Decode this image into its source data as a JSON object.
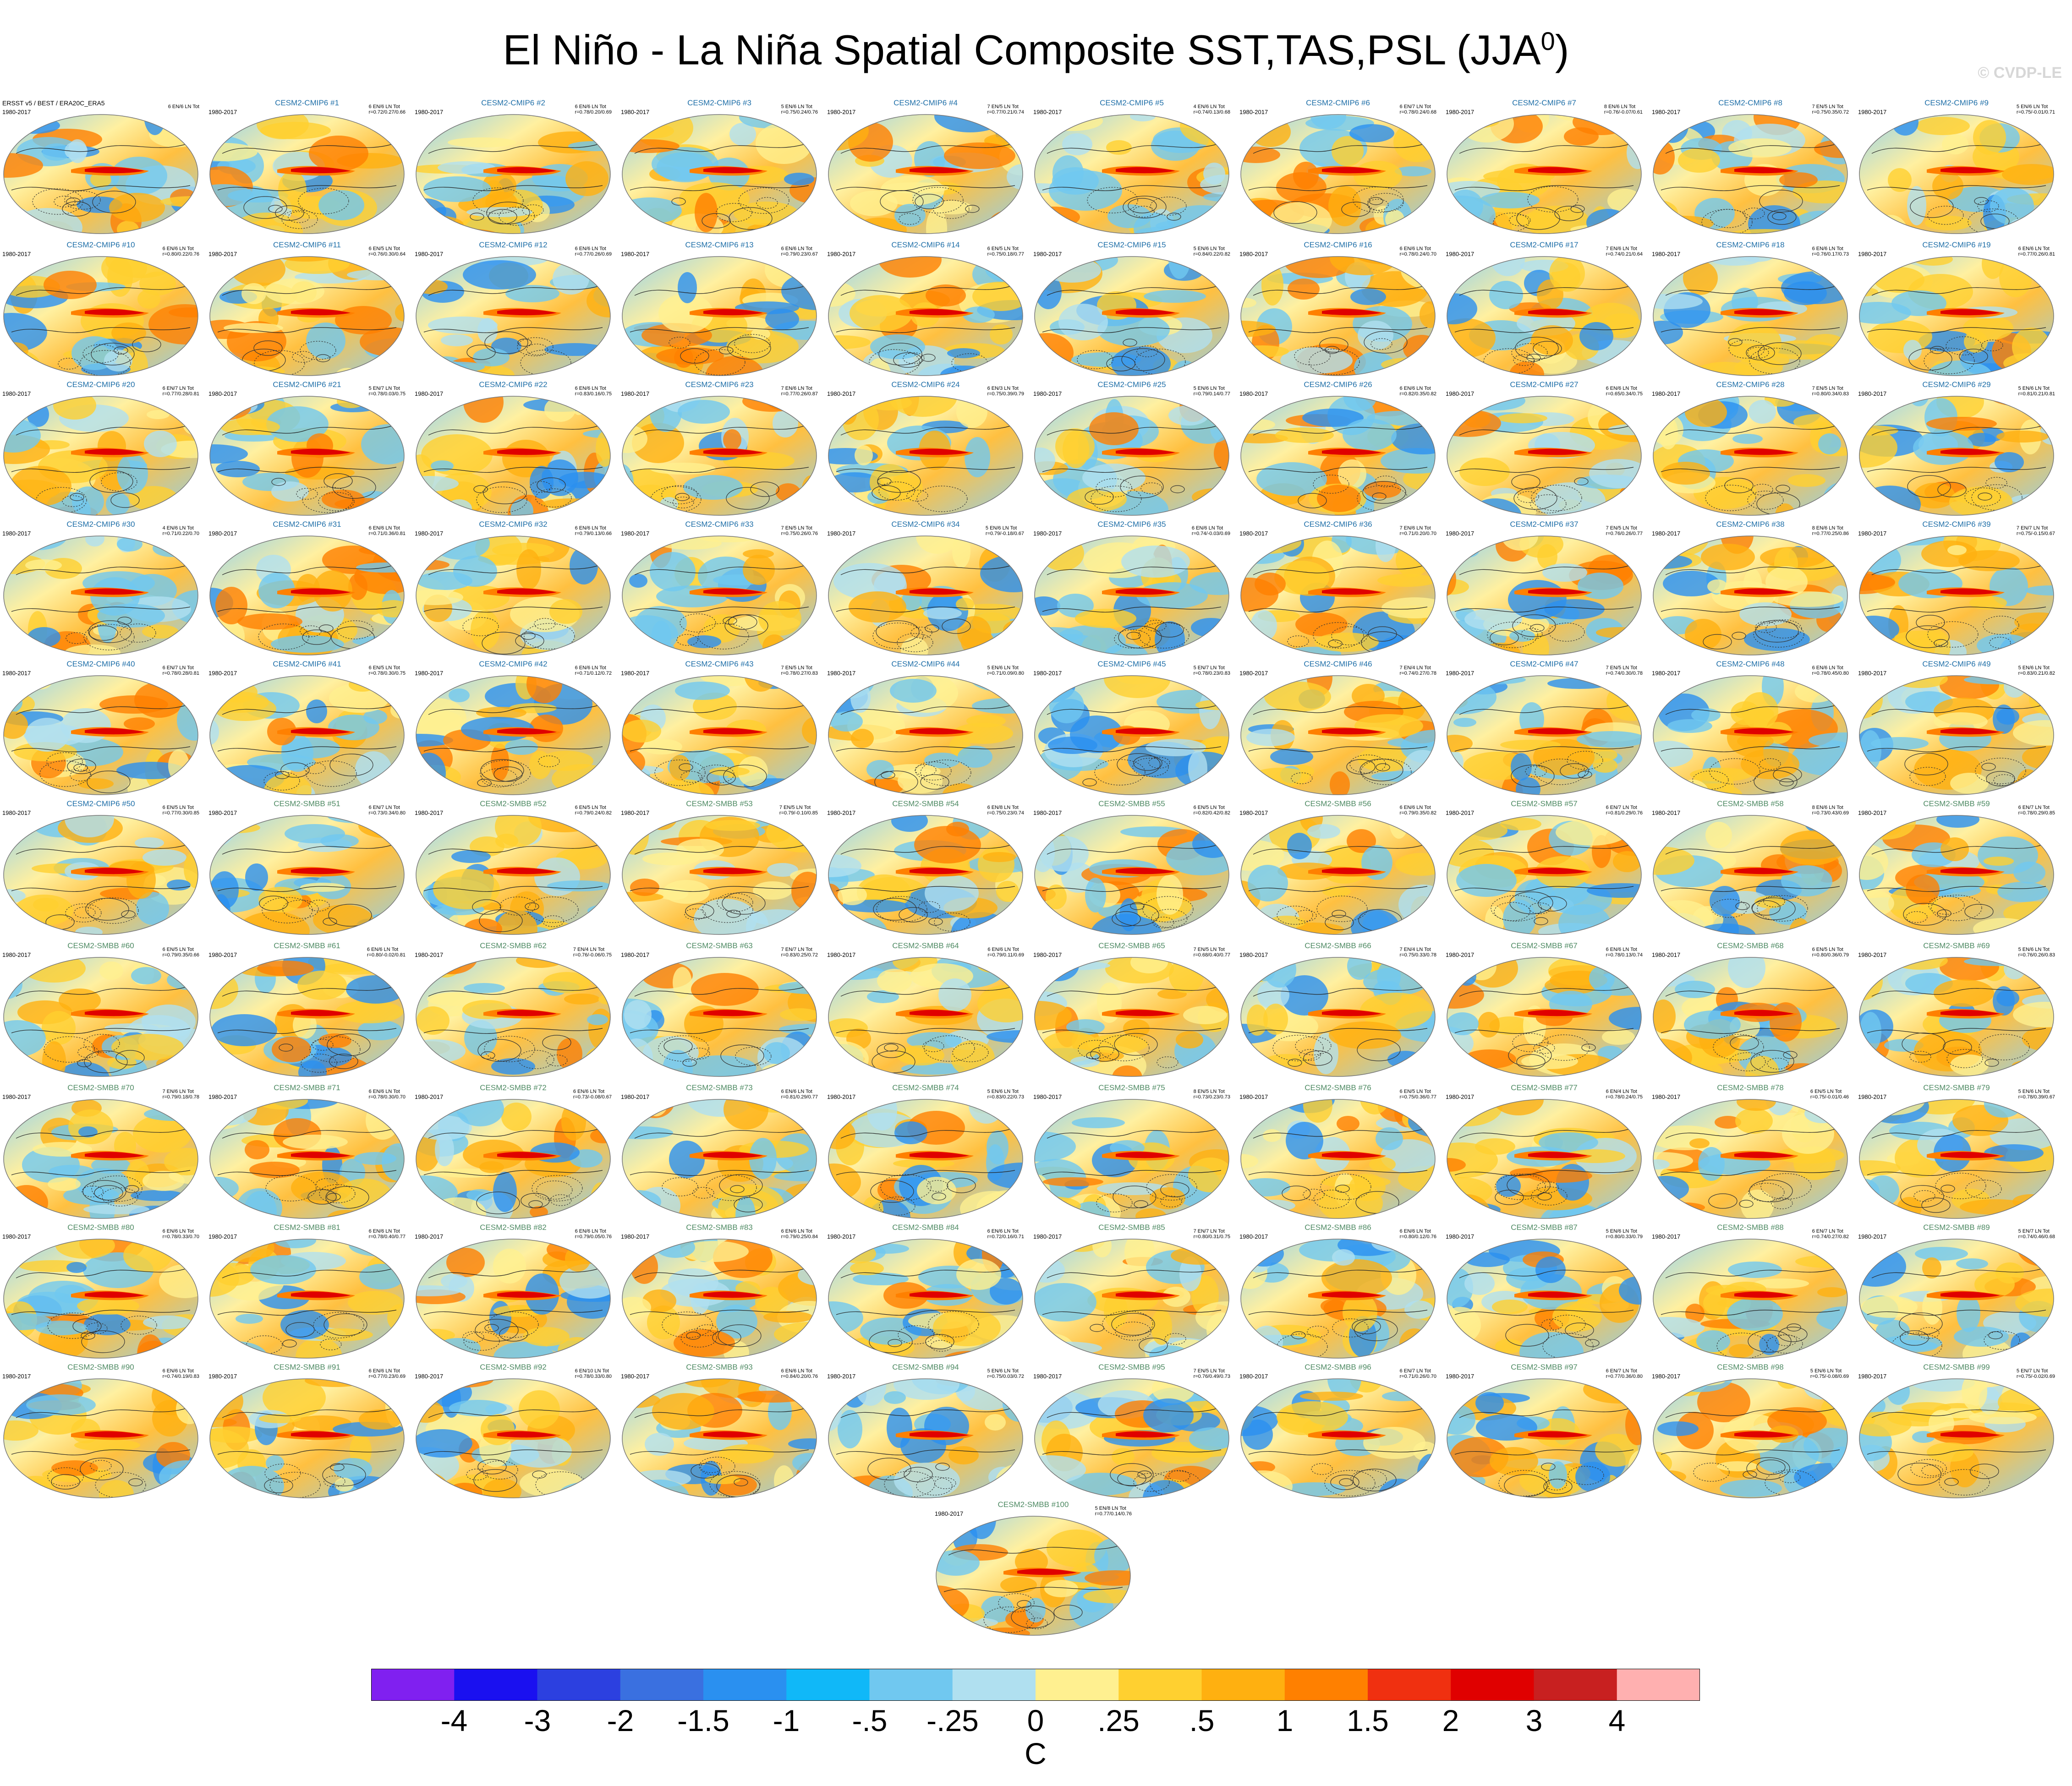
{
  "figure": {
    "title": "El Niño - La Niña Spatial Composite SST,TAS,PSL (JJA",
    "title_superscript": "0",
    "title_close": ")",
    "watermark": "© CVDP-LE"
  },
  "panels": [
    {
      "title": "ERSST v5 / BEST / ERA20C_ERA5",
      "years": "1980-2017",
      "stats": "6 EN/6 LN Tot",
      "kind": "obs"
    },
    {
      "title": "CESM2-CMIP6 #1",
      "years": "1980-2017",
      "stats": "6 EN/6 LN Tot\nr=0.72/0.27/0.66",
      "kind": "cmip"
    },
    {
      "title": "CESM2-CMIP6 #2",
      "years": "1980-2017",
      "stats": "6 EN/6 LN Tot\nr=0.78/0.20/0.69",
      "kind": "cmip"
    },
    {
      "title": "CESM2-CMIP6 #3",
      "years": "1980-2017",
      "stats": "5 EN/6 LN Tot\nr=0.75/0.24/0.76",
      "kind": "cmip"
    },
    {
      "title": "CESM2-CMIP6 #4",
      "years": "1980-2017",
      "stats": "7 EN/5 LN Tot\nr=0.77/0.21/0.74",
      "kind": "cmip"
    },
    {
      "title": "CESM2-CMIP6 #5",
      "years": "1980-2017",
      "stats": "4 EN/6 LN Tot\nr=0.74/0.13/0.68",
      "kind": "cmip"
    },
    {
      "title": "CESM2-CMIP6 #6",
      "years": "1980-2017",
      "stats": "6 EN/7 LN Tot\nr=0.78/0.24/0.68",
      "kind": "cmip"
    },
    {
      "title": "CESM2-CMIP6 #7",
      "years": "1980-2017",
      "stats": "8 EN/6 LN Tot\nr=0.76/-0.07/0.61",
      "kind": "cmip"
    },
    {
      "title": "CESM2-CMIP6 #8",
      "years": "1980-2017",
      "stats": "7 EN/5 LN Tot\nr=0.75/0.35/0.72",
      "kind": "cmip"
    },
    {
      "title": "CESM2-CMIP6 #9",
      "years": "1980-2017",
      "stats": "5 EN/6 LN Tot\nr=0.75/-0.01/0.71",
      "kind": "cmip"
    },
    {
      "title": "CESM2-CMIP6 #10",
      "years": "1980-2017",
      "stats": "6 EN/6 LN Tot\nr=0.80/0.22/0.76",
      "kind": "cmip"
    },
    {
      "title": "CESM2-CMIP6 #11",
      "years": "1980-2017",
      "stats": "6 EN/5 LN Tot\nr=0.76/0.30/0.64",
      "kind": "cmip"
    },
    {
      "title": "CESM2-CMIP6 #12",
      "years": "1980-2017",
      "stats": "6 EN/6 LN Tot\nr=0.77/0.26/0.69",
      "kind": "cmip"
    },
    {
      "title": "CESM2-CMIP6 #13",
      "years": "1980-2017",
      "stats": "6 EN/6 LN Tot\nr=0.79/0.23/0.67",
      "kind": "cmip"
    },
    {
      "title": "CESM2-CMIP6 #14",
      "years": "1980-2017",
      "stats": "6 EN/5 LN Tot\nr=0.75/0.18/0.77",
      "kind": "cmip"
    },
    {
      "title": "CESM2-CMIP6 #15",
      "years": "1980-2017",
      "stats": "5 EN/6 LN Tot\nr=0.84/0.22/0.82",
      "kind": "cmip"
    },
    {
      "title": "CESM2-CMIP6 #16",
      "years": "1980-2017",
      "stats": "6 EN/6 LN Tot\nr=0.78/0.24/0.70",
      "kind": "cmip"
    },
    {
      "title": "CESM2-CMIP6 #17",
      "years": "1980-2017",
      "stats": "7 EN/6 LN Tot\nr=0.74/0.21/0.64",
      "kind": "cmip"
    },
    {
      "title": "CESM2-CMIP6 #18",
      "years": "1980-2017",
      "stats": "6 EN/6 LN Tot\nr=0.76/0.17/0.73",
      "kind": "cmip"
    },
    {
      "title": "CESM2-CMIP6 #19",
      "years": "1980-2017",
      "stats": "6 EN/6 LN Tot\nr=0.77/0.26/0.81",
      "kind": "cmip"
    },
    {
      "title": "CESM2-CMIP6 #20",
      "years": "1980-2017",
      "stats": "6 EN/7 LN Tot\nr=0.77/0.28/0.81",
      "kind": "cmip"
    },
    {
      "title": "CESM2-CMIP6 #21",
      "years": "1980-2017",
      "stats": "5 EN/7 LN Tot\nr=0.78/0.03/0.75",
      "kind": "cmip"
    },
    {
      "title": "CESM2-CMIP6 #22",
      "years": "1980-2017",
      "stats": "6 EN/6 LN Tot\nr=0.83/0.16/0.75",
      "kind": "cmip"
    },
    {
      "title": "CESM2-CMIP6 #23",
      "years": "1980-2017",
      "stats": "7 EN/6 LN Tot\nr=0.77/0.26/0.87",
      "kind": "cmip"
    },
    {
      "title": "CESM2-CMIP6 #24",
      "years": "1980-2017",
      "stats": "6 EN/3 LN Tot\nr=0.75/0.39/0.79",
      "kind": "cmip"
    },
    {
      "title": "CESM2-CMIP6 #25",
      "years": "1980-2017",
      "stats": "5 EN/6 LN Tot\nr=0.79/0.14/0.77",
      "kind": "cmip"
    },
    {
      "title": "CESM2-CMIP6 #26",
      "years": "1980-2017",
      "stats": "6 EN/6 LN Tot\nr=0.82/0.35/0.82",
      "kind": "cmip"
    },
    {
      "title": "CESM2-CMIP6 #27",
      "years": "1980-2017",
      "stats": "6 EN/6 LN Tot\nr=0.65/0.34/0.75",
      "kind": "cmip"
    },
    {
      "title": "CESM2-CMIP6 #28",
      "years": "1980-2017",
      "stats": "7 EN/5 LN Tot\nr=0.80/0.34/0.83",
      "kind": "cmip"
    },
    {
      "title": "CESM2-CMIP6 #29",
      "years": "1980-2017",
      "stats": "5 EN/6 LN Tot\nr=0.81/0.21/0.81",
      "kind": "cmip"
    },
    {
      "title": "CESM2-CMIP6 #30",
      "years": "1980-2017",
      "stats": "4 EN/6 LN Tot\nr=0.71/0.22/0.70",
      "kind": "cmip"
    },
    {
      "title": "CESM2-CMIP6 #31",
      "years": "1980-2017",
      "stats": "6 EN/6 LN Tot\nr=0.71/0.36/0.81",
      "kind": "cmip"
    },
    {
      "title": "CESM2-CMIP6 #32",
      "years": "1980-2017",
      "stats": "6 EN/6 LN Tot\nr=0.79/0.13/0.66",
      "kind": "cmip"
    },
    {
      "title": "CESM2-CMIP6 #33",
      "years": "1980-2017",
      "stats": "7 EN/5 LN Tot\nr=0.75/0.26/0.76",
      "kind": "cmip"
    },
    {
      "title": "CESM2-CMIP6 #34",
      "years": "1980-2017",
      "stats": "5 EN/6 LN Tot\nr=0.79/-0.18/0.67",
      "kind": "cmip"
    },
    {
      "title": "CESM2-CMIP6 #35",
      "years": "1980-2017",
      "stats": "6 EN/6 LN Tot\nr=0.74/-0.03/0.69",
      "kind": "cmip"
    },
    {
      "title": "CESM2-CMIP6 #36",
      "years": "1980-2017",
      "stats": "7 EN/6 LN Tot\nr=0.71/0.20/0.70",
      "kind": "cmip"
    },
    {
      "title": "CESM2-CMIP6 #37",
      "years": "1980-2017",
      "stats": "7 EN/5 LN Tot\nr=0.76/0.26/0.77",
      "kind": "cmip"
    },
    {
      "title": "CESM2-CMIP6 #38",
      "years": "1980-2017",
      "stats": "8 EN/6 LN Tot\nr=0.77/0.25/0.86",
      "kind": "cmip"
    },
    {
      "title": "CESM2-CMIP6 #39",
      "years": "1980-2017",
      "stats": "7 EN/7 LN Tot\nr=0.75/-0.15/0.67",
      "kind": "cmip"
    },
    {
      "title": "CESM2-CMIP6 #40",
      "years": "1980-2017",
      "stats": "6 EN/7 LN Tot\nr=0.78/0.28/0.81",
      "kind": "cmip"
    },
    {
      "title": "CESM2-CMIP6 #41",
      "years": "1980-2017",
      "stats": "6 EN/5 LN Tot\nr=0.78/0.30/0.75",
      "kind": "cmip"
    },
    {
      "title": "CESM2-CMIP6 #42",
      "years": "1980-2017",
      "stats": "6 EN/6 LN Tot\nr=0.71/0.12/0.72",
      "kind": "cmip"
    },
    {
      "title": "CESM2-CMIP6 #43",
      "years": "1980-2017",
      "stats": "7 EN/5 LN Tot\nr=0.78/0.27/0.83",
      "kind": "cmip"
    },
    {
      "title": "CESM2-CMIP6 #44",
      "years": "1980-2017",
      "stats": "5 EN/6 LN Tot\nr=0.71/0.09/0.80",
      "kind": "cmip"
    },
    {
      "title": "CESM2-CMIP6 #45",
      "years": "1980-2017",
      "stats": "5 EN/7 LN Tot\nr=0.78/0.23/0.83",
      "kind": "cmip"
    },
    {
      "title": "CESM2-CMIP6 #46",
      "years": "1980-2017",
      "stats": "7 EN/4 LN Tot\nr=0.74/0.27/0.78",
      "kind": "cmip"
    },
    {
      "title": "CESM2-CMIP6 #47",
      "years": "1980-2017",
      "stats": "7 EN/5 LN Tot\nr=0.74/0.30/0.78",
      "kind": "cmip"
    },
    {
      "title": "CESM2-CMIP6 #48",
      "years": "1980-2017",
      "stats": "6 EN/6 LN Tot\nr=0.78/0.45/0.80",
      "kind": "cmip"
    },
    {
      "title": "CESM2-CMIP6 #49",
      "years": "1980-2017",
      "stats": "5 EN/6 LN Tot\nr=0.83/0.21/0.82",
      "kind": "cmip"
    },
    {
      "title": "CESM2-CMIP6 #50",
      "years": "1980-2017",
      "stats": "6 EN/5 LN Tot\nr=0.77/0.30/0.85",
      "kind": "cmip"
    },
    {
      "title": "CESM2-SMBB #51",
      "years": "1980-2017",
      "stats": "6 EN/7 LN Tot\nr=0.73/0.34/0.80",
      "kind": "smbb"
    },
    {
      "title": "CESM2-SMBB #52",
      "years": "1980-2017",
      "stats": "6 EN/5 LN Tot\nr=0.79/0.24/0.82",
      "kind": "smbb"
    },
    {
      "title": "CESM2-SMBB #53",
      "years": "1980-2017",
      "stats": "7 EN/5 LN Tot\nr=0.79/-0.10/0.85",
      "kind": "smbb"
    },
    {
      "title": "CESM2-SMBB #54",
      "years": "1980-2017",
      "stats": "6 EN/8 LN Tot\nr=0.75/0.23/0.74",
      "kind": "smbb"
    },
    {
      "title": "CESM2-SMBB #55",
      "years": "1980-2017",
      "stats": "6 EN/5 LN Tot\nr=0.82/0.42/0.82",
      "kind": "smbb"
    },
    {
      "title": "CESM2-SMBB #56",
      "years": "1980-2017",
      "stats": "6 EN/6 LN Tot\nr=0.79/0.35/0.82",
      "kind": "smbb"
    },
    {
      "title": "CESM2-SMBB #57",
      "years": "1980-2017",
      "stats": "6 EN/7 LN Tot\nr=0.81/0.29/0.76",
      "kind": "smbb"
    },
    {
      "title": "CESM2-SMBB #58",
      "years": "1980-2017",
      "stats": "8 EN/6 LN Tot\nr=0.73/0.43/0.69",
      "kind": "smbb"
    },
    {
      "title": "CESM2-SMBB #59",
      "years": "1980-2017",
      "stats": "6 EN/7 LN Tot\nr=0.78/0.29/0.85",
      "kind": "smbb"
    },
    {
      "title": "CESM2-SMBB #60",
      "years": "1980-2017",
      "stats": "6 EN/5 LN Tot\nr=0.79/0.35/0.66",
      "kind": "smbb"
    },
    {
      "title": "CESM2-SMBB #61",
      "years": "1980-2017",
      "stats": "6 EN/6 LN Tot\nr=0.80/-0.02/0.81",
      "kind": "smbb"
    },
    {
      "title": "CESM2-SMBB #62",
      "years": "1980-2017",
      "stats": "7 EN/4 LN Tot\nr=0.76/-0.06/0.75",
      "kind": "smbb"
    },
    {
      "title": "CESM2-SMBB #63",
      "years": "1980-2017",
      "stats": "7 EN/7 LN Tot\nr=0.83/0.25/0.72",
      "kind": "smbb"
    },
    {
      "title": "CESM2-SMBB #64",
      "years": "1980-2017",
      "stats": "6 EN/6 LN Tot\nr=0.79/0.11/0.69",
      "kind": "smbb"
    },
    {
      "title": "CESM2-SMBB #65",
      "years": "1980-2017",
      "stats": "7 EN/5 LN Tot\nr=0.68/0.40/0.77",
      "kind": "smbb"
    },
    {
      "title": "CESM2-SMBB #66",
      "years": "1980-2017",
      "stats": "7 EN/4 LN Tot\nr=0.75/0.33/0.78",
      "kind": "smbb"
    },
    {
      "title": "CESM2-SMBB #67",
      "years": "1980-2017",
      "stats": "6 EN/6 LN Tot\nr=0.78/0.13/0.74",
      "kind": "smbb"
    },
    {
      "title": "CESM2-SMBB #68",
      "years": "1980-2017",
      "stats": "6 EN/5 LN Tot\nr=0.80/0.36/0.79",
      "kind": "smbb"
    },
    {
      "title": "CESM2-SMBB #69",
      "years": "1980-2017",
      "stats": "5 EN/6 LN Tot\nr=0.76/0.26/0.83",
      "kind": "smbb"
    },
    {
      "title": "CESM2-SMBB #70",
      "years": "1980-2017",
      "stats": "7 EN/6 LN Tot\nr=0.79/0.18/0.78",
      "kind": "smbb"
    },
    {
      "title": "CESM2-SMBB #71",
      "years": "1980-2017",
      "stats": "6 EN/6 LN Tot\nr=0.78/0.30/0.70",
      "kind": "smbb"
    },
    {
      "title": "CESM2-SMBB #72",
      "years": "1980-2017",
      "stats": "6 EN/6 LN Tot\nr=0.73/-0.08/0.67",
      "kind": "smbb"
    },
    {
      "title": "CESM2-SMBB #73",
      "years": "1980-2017",
      "stats": "6 EN/6 LN Tot\nr=0.81/0.29/0.77",
      "kind": "smbb"
    },
    {
      "title": "CESM2-SMBB #74",
      "years": "1980-2017",
      "stats": "5 EN/6 LN Tot\nr=0.83/0.22/0.73",
      "kind": "smbb"
    },
    {
      "title": "CESM2-SMBB #75",
      "years": "1980-2017",
      "stats": "8 EN/5 LN Tot\nr=0.73/0.23/0.73",
      "kind": "smbb"
    },
    {
      "title": "CESM2-SMBB #76",
      "years": "1980-2017",
      "stats": "6 EN/5 LN Tot\nr=0.75/0.36/0.77",
      "kind": "smbb"
    },
    {
      "title": "CESM2-SMBB #77",
      "years": "1980-2017",
      "stats": "6 EN/4 LN Tot\nr=0.78/0.24/0.75",
      "kind": "smbb"
    },
    {
      "title": "CESM2-SMBB #78",
      "years": "1980-2017",
      "stats": "6 EN/5 LN Tot\nr=0.75/-0.01/0.46",
      "kind": "smbb"
    },
    {
      "title": "CESM2-SMBB #79",
      "years": "1980-2017",
      "stats": "5 EN/6 LN Tot\nr=0.78/0.39/0.67",
      "kind": "smbb"
    },
    {
      "title": "CESM2-SMBB #80",
      "years": "1980-2017",
      "stats": "6 EN/6 LN Tot\nr=0.78/0.33/0.70",
      "kind": "smbb"
    },
    {
      "title": "CESM2-SMBB #81",
      "years": "1980-2017",
      "stats": "6 EN/6 LN Tot\nr=0.78/0.40/0.77",
      "kind": "smbb"
    },
    {
      "title": "CESM2-SMBB #82",
      "years": "1980-2017",
      "stats": "6 EN/6 LN Tot\nr=0.79/0.05/0.76",
      "kind": "smbb"
    },
    {
      "title": "CESM2-SMBB #83",
      "years": "1980-2017",
      "stats": "6 EN/6 LN Tot\nr=0.79/0.25/0.84",
      "kind": "smbb"
    },
    {
      "title": "CESM2-SMBB #84",
      "years": "1980-2017",
      "stats": "6 EN/6 LN Tot\nr=0.72/0.16/0.71",
      "kind": "smbb"
    },
    {
      "title": "CESM2-SMBB #85",
      "years": "1980-2017",
      "stats": "7 EN/7 LN Tot\nr=0.80/0.31/0.75",
      "kind": "smbb"
    },
    {
      "title": "CESM2-SMBB #86",
      "years": "1980-2017",
      "stats": "6 EN/6 LN Tot\nr=0.80/0.12/0.76",
      "kind": "smbb"
    },
    {
      "title": "CESM2-SMBB #87",
      "years": "1980-2017",
      "stats": "5 EN/6 LN Tot\nr=0.80/0.33/0.79",
      "kind": "smbb"
    },
    {
      "title": "CESM2-SMBB #88",
      "years": "1980-2017",
      "stats": "6 EN/7 LN Tot\nr=0.74/0.27/0.82",
      "kind": "smbb"
    },
    {
      "title": "CESM2-SMBB #89",
      "years": "1980-2017",
      "stats": "5 EN/7 LN Tot\nr=0.74/0.46/0.68",
      "kind": "smbb"
    },
    {
      "title": "CESM2-SMBB #90",
      "years": "1980-2017",
      "stats": "6 EN/6 LN Tot\nr=0.74/0.19/0.83",
      "kind": "smbb"
    },
    {
      "title": "CESM2-SMBB #91",
      "years": "1980-2017",
      "stats": "6 EN/6 LN Tot\nr=0.77/0.23/0.69",
      "kind": "smbb"
    },
    {
      "title": "CESM2-SMBB #92",
      "years": "1980-2017",
      "stats": "6 EN/10 LN Tot\nr=0.78/0.33/0.80",
      "kind": "smbb"
    },
    {
      "title": "CESM2-SMBB #93",
      "years": "1980-2017",
      "stats": "6 EN/6 LN Tot\nr=0.84/0.20/0.76",
      "kind": "smbb"
    },
    {
      "title": "CESM2-SMBB #94",
      "years": "1980-2017",
      "stats": "5 EN/6 LN Tot\nr=0.75/0.03/0.72",
      "kind": "smbb"
    },
    {
      "title": "CESM2-SMBB #95",
      "years": "1980-2017",
      "stats": "7 EN/5 LN Tot\nr=0.76/0.49/0.73",
      "kind": "smbb"
    },
    {
      "title": "CESM2-SMBB #96",
      "years": "1980-2017",
      "stats": "6 EN/7 LN Tot\nr=0.71/0.26/0.70",
      "kind": "smbb"
    },
    {
      "title": "CESM2-SMBB #97",
      "years": "1980-2017",
      "stats": "6 EN/7 LN Tot\nr=0.77/0.36/0.80",
      "kind": "smbb"
    },
    {
      "title": "CESM2-SMBB #98",
      "years": "1980-2017",
      "stats": "5 EN/6 LN Tot\nr=0.75/-0.08/0.69",
      "kind": "smbb"
    },
    {
      "title": "CESM2-SMBB #99",
      "years": "1980-2017",
      "stats": "5 EN/7 LN Tot\nr=0.75/-0.02/0.69",
      "kind": "smbb"
    },
    {
      "title": "CESM2-SMBB #100",
      "years": "1980-2017",
      "stats": "5 EN/8 LN Tot\nr=0.77/0.14/0.76",
      "kind": "smbb"
    }
  ],
  "colorbar": {
    "units": "C",
    "tick_labels": [
      "-4",
      "-3",
      "-2",
      "-1.5",
      "-1",
      "-.5",
      "-.25",
      "0",
      ".25",
      ".5",
      "1",
      "1.5",
      "2",
      "3",
      "4"
    ],
    "colors": [
      "#8020f0",
      "#1a10f0",
      "#2c40e0",
      "#3a70e0",
      "#2a90f0",
      "#10b8f8",
      "#70c8f0",
      "#b0e0f0",
      "#fff090",
      "#ffd030",
      "#ffb010",
      "#ff8000",
      "#f03010",
      "#e00000",
      "#c82020",
      "#ffb0b0"
    ]
  }
}
